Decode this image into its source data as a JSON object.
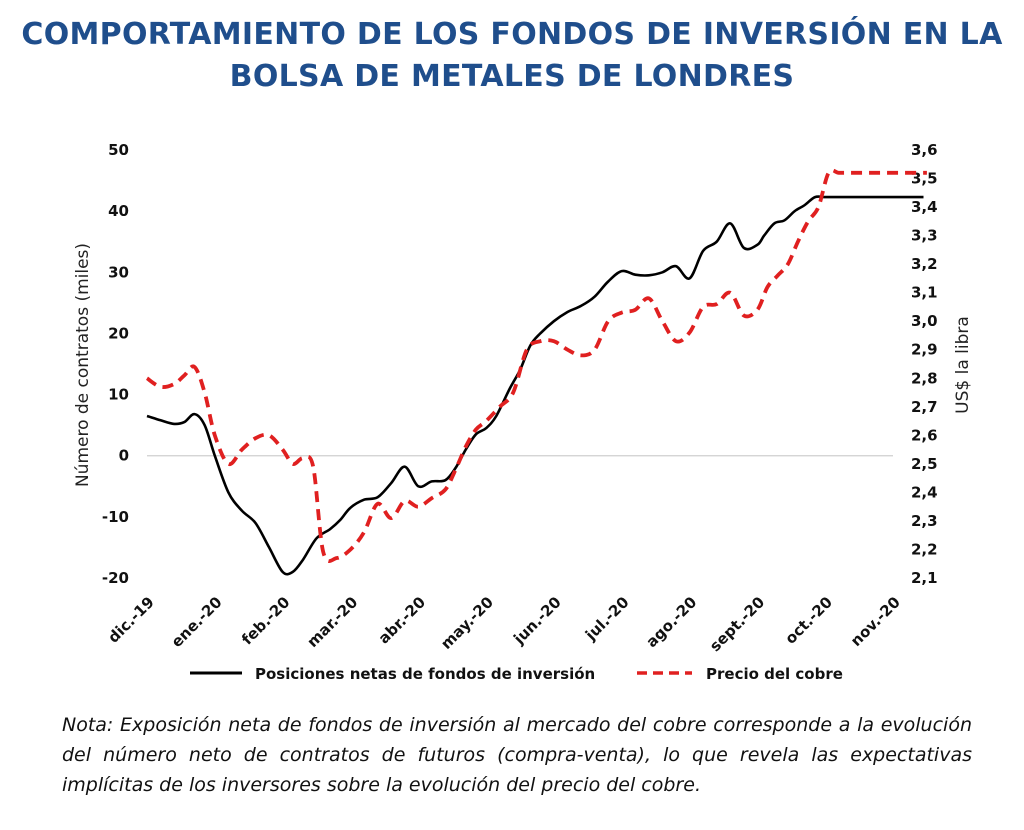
{
  "title": {
    "line1": "COMPORTAMIENTO DE LOS FONDOS DE INVERSIÓN EN LA",
    "line2": "BOLSA DE METALES DE LONDRES"
  },
  "note": "Nota: Exposición neta de fondos de inversión al mercado del cobre corresponde a la evolución del número neto de contratos de futuros (compra-venta), lo que revela las expectativas implícitas de los inversores sobre la evolución del precio del cobre.",
  "colors": {
    "title": "#1f4e8c",
    "funds": "#000000",
    "copper": "#e02020",
    "zeroline": "#cfcfcf"
  },
  "chart_data": {
    "type": "line",
    "categories": [
      "dic.-19",
      "ene.-20",
      "feb.-20",
      "mar.-20",
      "abr.-20",
      "may.-20",
      "jun.-20",
      "jul.-20",
      "ago.-20",
      "sept.-20",
      "oct.-20",
      "nov.-20"
    ],
    "ylabel_left": "Número de contratos (miles)",
    "ylabel_right": "US$ la libra",
    "ylim_left": [
      -20,
      50
    ],
    "ylim_right": [
      2.1,
      3.6
    ],
    "yticks_left": [
      "50",
      "40",
      "30",
      "20",
      "10",
      "0",
      "-10",
      "-20"
    ],
    "yticks_right": [
      "3,6",
      "3,5",
      "3,4",
      "3,3",
      "3,2",
      "3,1",
      "3,0",
      "2,9",
      "2,8",
      "2,7",
      "2,6",
      "2,5",
      "2,4",
      "2,3",
      "2,2",
      "2,1"
    ],
    "grid": false,
    "legend_position": "bottom",
    "series": [
      {
        "name": "Posiciones netas de fondos de inversión",
        "axis": "left",
        "style": "solid",
        "x": [
          0,
          0.2,
          0.4,
          0.55,
          0.7,
          0.85,
          1.0,
          1.2,
          1.4,
          1.6,
          1.8,
          2.0,
          2.15,
          2.3,
          2.5,
          2.7,
          2.85,
          3.0,
          3.2,
          3.4,
          3.6,
          3.8,
          4.0,
          4.2,
          4.4,
          4.55,
          4.7,
          4.85,
          5.0,
          5.15,
          5.35,
          5.5,
          5.65,
          5.8,
          6.0,
          6.2,
          6.4,
          6.6,
          6.8,
          7.0,
          7.2,
          7.4,
          7.6,
          7.8,
          8.0,
          8.2,
          8.4,
          8.6,
          8.8,
          9.0,
          9.1,
          9.25,
          9.4,
          9.55,
          9.7,
          9.85,
          10.0,
          10.15,
          10.3,
          10.45,
          10.6,
          10.75,
          10.9,
          11.0,
          11.15,
          11.3,
          11.45
        ],
        "values": [
          6.5,
          5.8,
          5.2,
          5.5,
          6.8,
          5.0,
          0.0,
          -6.0,
          -9.0,
          -11.0,
          -15.0,
          -19.0,
          -19.0,
          -17.0,
          -13.5,
          -12.0,
          -10.5,
          -8.5,
          -7.2,
          -6.8,
          -4.5,
          -1.8,
          -5.0,
          -4.2,
          -4.0,
          -2.0,
          1.0,
          3.5,
          4.5,
          6.5,
          11.0,
          14.0,
          18.0,
          20.0,
          22.0,
          23.5,
          24.5,
          26.0,
          28.5,
          30.2,
          29.6,
          29.5,
          30.0,
          31.0,
          29.0,
          33.5,
          35.0,
          38.0,
          34.0,
          34.5,
          36.0,
          38.0,
          38.5,
          40.0,
          41.0,
          42.3,
          42.3,
          42.3,
          42.3,
          42.3,
          42.3,
          42.3,
          42.3,
          42.3,
          42.3,
          42.3,
          42.3
        ]
      },
      {
        "name": "Precio del cobre",
        "axis": "right",
        "style": "dashed",
        "x": [
          0,
          0.2,
          0.4,
          0.55,
          0.7,
          0.85,
          1.0,
          1.2,
          1.4,
          1.6,
          1.8,
          2.0,
          2.15,
          2.3,
          2.45,
          2.6,
          2.8,
          3.0,
          3.2,
          3.4,
          3.6,
          3.8,
          4.0,
          4.2,
          4.4,
          4.55,
          4.7,
          4.85,
          5.0,
          5.2,
          5.4,
          5.6,
          5.8,
          6.0,
          6.2,
          6.4,
          6.6,
          6.8,
          7.0,
          7.2,
          7.4,
          7.6,
          7.8,
          8.0,
          8.2,
          8.4,
          8.6,
          8.8,
          9.0,
          9.15,
          9.3,
          9.45,
          9.6,
          9.75,
          9.9,
          10.05,
          10.2,
          10.35,
          10.5,
          10.65,
          10.8,
          10.95,
          11.1,
          11.25,
          11.4,
          11.5
        ],
        "values": [
          2.8,
          2.77,
          2.78,
          2.81,
          2.84,
          2.75,
          2.6,
          2.5,
          2.55,
          2.59,
          2.6,
          2.55,
          2.5,
          2.52,
          2.49,
          2.19,
          2.17,
          2.2,
          2.26,
          2.36,
          2.31,
          2.37,
          2.35,
          2.38,
          2.41,
          2.48,
          2.56,
          2.62,
          2.65,
          2.7,
          2.75,
          2.9,
          2.93,
          2.93,
          2.9,
          2.88,
          2.9,
          3.0,
          3.03,
          3.04,
          3.08,
          3.0,
          2.93,
          2.96,
          3.05,
          3.06,
          3.1,
          3.02,
          3.04,
          3.12,
          3.16,
          3.2,
          3.28,
          3.35,
          3.4,
          3.52,
          3.52,
          3.52,
          3.52,
          3.52,
          3.52,
          3.52,
          3.52,
          3.52,
          3.52,
          3.52
        ]
      }
    ]
  }
}
